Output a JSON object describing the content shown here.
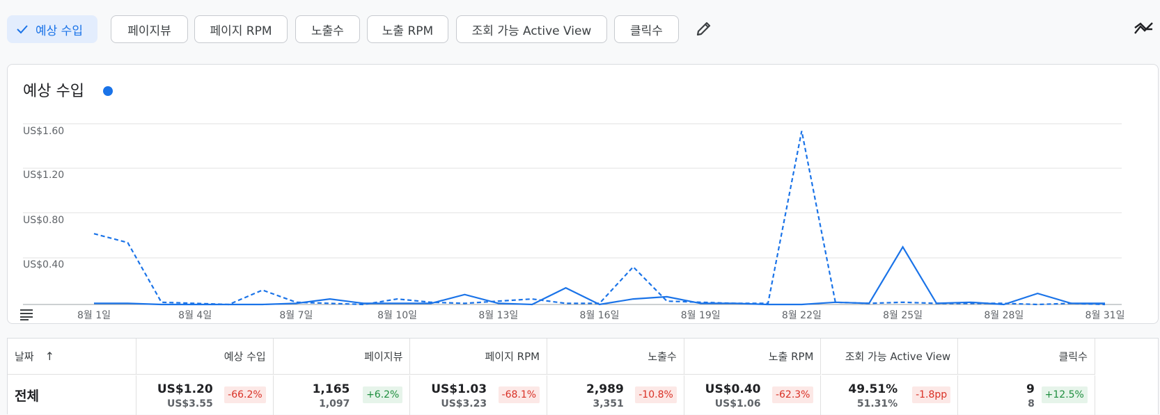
{
  "metric_chips": [
    {
      "label": "예상 수입",
      "selected": true
    },
    {
      "label": "페이지뷰",
      "selected": false
    },
    {
      "label": "페이지 RPM",
      "selected": false
    },
    {
      "label": "노출수",
      "selected": false
    },
    {
      "label": "노출 RPM",
      "selected": false
    },
    {
      "label": "조회 가능 Active View",
      "selected": false
    },
    {
      "label": "클릭수",
      "selected": false
    }
  ],
  "icons": {
    "check": "check-icon",
    "edit": "pencil-icon",
    "trend": "trend-compare-icon",
    "menu": "menu-icon"
  },
  "colors": {
    "accent": "#1a73e8",
    "negative": "#d93025",
    "positive": "#1e8e3e"
  },
  "chart_data": {
    "type": "line",
    "title": "예상 수입",
    "ylim": [
      0,
      1.6
    ],
    "yticks": [
      "US$0.40",
      "US$0.80",
      "US$1.20",
      "US$1.60"
    ],
    "ytick_values": [
      0.4,
      0.8,
      1.2,
      1.6
    ],
    "x_tick_labels": [
      "8월 1일",
      "8월 4일",
      "8월 7일",
      "8월 10일",
      "8월 13일",
      "8월 16일",
      "8월 19일",
      "8월 22일",
      "8월 25일",
      "8월 28일",
      "8월 31일"
    ],
    "x_tick_days": [
      1,
      4,
      7,
      10,
      13,
      16,
      19,
      22,
      25,
      28,
      31
    ],
    "grid": true,
    "series": [
      {
        "style": "solid",
        "x": [
          1,
          2,
          3,
          4,
          5,
          6,
          7,
          8,
          9,
          10,
          11,
          12,
          13,
          14,
          15,
          16,
          17,
          18,
          19,
          20,
          21,
          22,
          23,
          24,
          25,
          26,
          27,
          28,
          29,
          30,
          31
        ],
        "values": [
          0.01,
          0.01,
          0.0,
          0.0,
          0.0,
          0.0,
          0.01,
          0.05,
          0.01,
          0.01,
          0.01,
          0.09,
          0.01,
          0.0,
          0.15,
          0.0,
          0.05,
          0.07,
          0.01,
          0.01,
          0.0,
          0.0,
          0.02,
          0.01,
          0.52,
          0.01,
          0.02,
          0.0,
          0.1,
          0.01,
          0.01
        ]
      },
      {
        "style": "dashed",
        "x": [
          1,
          2,
          3,
          4,
          5,
          6,
          7,
          8,
          9,
          10,
          11,
          12,
          13,
          14,
          15,
          16,
          17,
          18,
          19,
          20,
          21,
          22,
          23,
          24,
          25,
          26,
          27,
          28,
          29,
          30,
          31
        ],
        "values": [
          0.64,
          0.56,
          0.02,
          0.01,
          0.0,
          0.13,
          0.02,
          0.01,
          0.0,
          0.05,
          0.02,
          0.01,
          0.03,
          0.05,
          0.01,
          0.01,
          0.34,
          0.03,
          0.02,
          0.01,
          0.01,
          1.57,
          0.02,
          0.01,
          0.02,
          0.01,
          0.01,
          0.01,
          0.0,
          0.01,
          0.0
        ]
      }
    ]
  },
  "table": {
    "headers": [
      "날짜",
      "예상 수입",
      "페이지뷰",
      "페이지 RPM",
      "노출수",
      "노출 RPM",
      "조회 가능 Active View",
      "클릭수"
    ],
    "sort_arrow": "↑",
    "total_label": "전체",
    "cells": [
      {
        "current": "US$1.20",
        "previous": "US$3.55",
        "change": "-66.2%",
        "direction": "neg"
      },
      {
        "current": "1,165",
        "previous": "1,097",
        "change": "+6.2%",
        "direction": "pos"
      },
      {
        "current": "US$1.03",
        "previous": "US$3.23",
        "change": "-68.1%",
        "direction": "neg"
      },
      {
        "current": "2,989",
        "previous": "3,351",
        "change": "-10.8%",
        "direction": "neg"
      },
      {
        "current": "US$0.40",
        "previous": "US$1.06",
        "change": "-62.3%",
        "direction": "neg"
      },
      {
        "current": "49.51%",
        "previous": "51.31%",
        "change": "-1.8pp",
        "direction": "neg"
      },
      {
        "current": "9",
        "previous": "8",
        "change": "+12.5%",
        "direction": "pos"
      }
    ]
  }
}
